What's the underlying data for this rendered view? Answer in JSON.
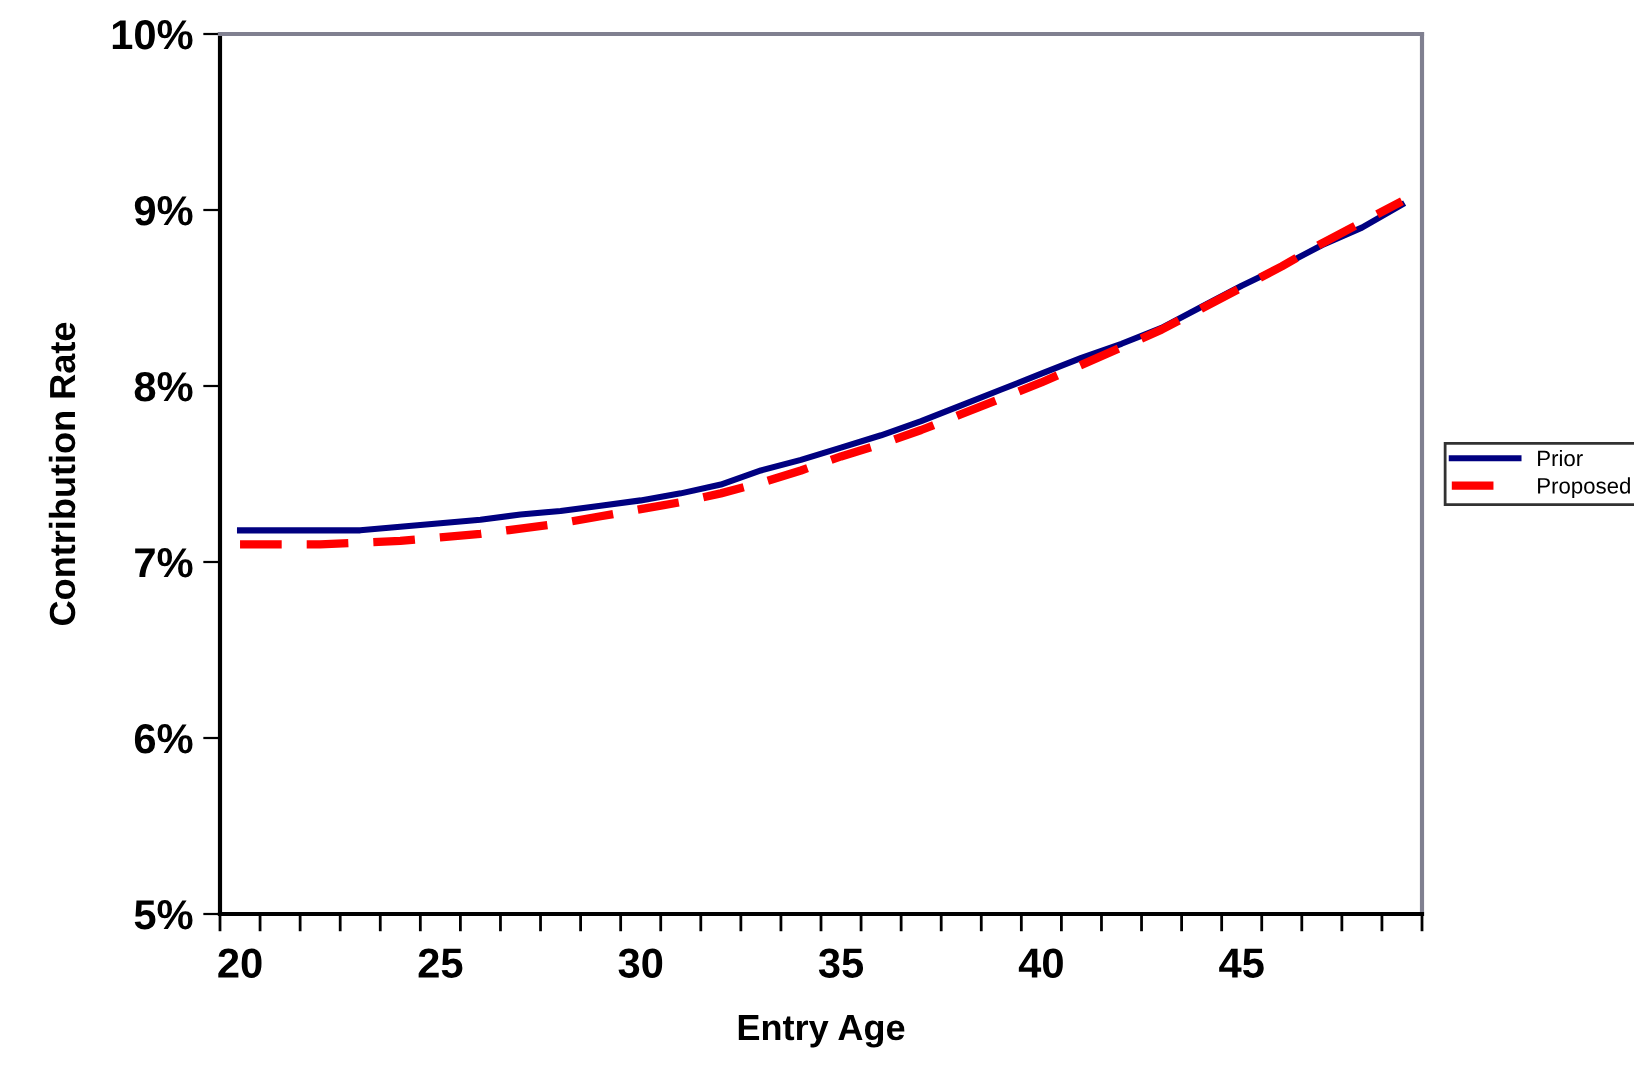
{
  "chart_data": {
    "type": "line",
    "xlabel": "Entry Age",
    "ylabel": "Contribution Rate",
    "categories": [
      "20",
      null,
      null,
      null,
      null,
      "25",
      null,
      null,
      null,
      null,
      "30",
      null,
      null,
      null,
      null,
      "35",
      null,
      null,
      null,
      null,
      "40",
      null,
      null,
      null,
      null,
      "45",
      null,
      null,
      null,
      null
    ],
    "series": [
      {
        "name": "Prior",
        "color": "#000080",
        "line_style": "solid",
        "values": [
          7.18,
          7.18,
          7.18,
          7.18,
          7.2,
          7.22,
          7.24,
          7.27,
          7.29,
          7.32,
          7.35,
          7.39,
          7.44,
          7.52,
          7.58,
          7.65,
          7.72,
          7.8,
          7.89,
          7.98,
          8.07,
          8.16,
          8.24,
          8.33,
          8.45,
          8.57,
          8.68,
          8.8,
          8.9,
          9.03
        ]
      },
      {
        "name": "Proposed",
        "color": "#ff0000",
        "line_style": "dashed",
        "values": [
          7.1,
          7.1,
          7.1,
          7.11,
          7.12,
          7.14,
          7.16,
          7.19,
          7.22,
          7.26,
          7.3,
          7.34,
          7.39,
          7.45,
          7.52,
          7.6,
          7.67,
          7.75,
          7.84,
          7.93,
          8.02,
          8.12,
          8.22,
          8.32,
          8.44,
          8.56,
          8.68,
          8.81,
          8.93,
          9.05
        ]
      }
    ],
    "ylim": [
      5,
      10
    ],
    "yticks": [
      {
        "value": 5,
        "label": "5%"
      },
      {
        "value": 6,
        "label": "6%"
      },
      {
        "value": 7,
        "label": "7%"
      },
      {
        "value": 8,
        "label": "8%"
      },
      {
        "value": 9,
        "label": "9%"
      },
      {
        "value": 10,
        "label": "10%"
      }
    ],
    "grid": false,
    "legend": "right",
    "marker": "none"
  }
}
